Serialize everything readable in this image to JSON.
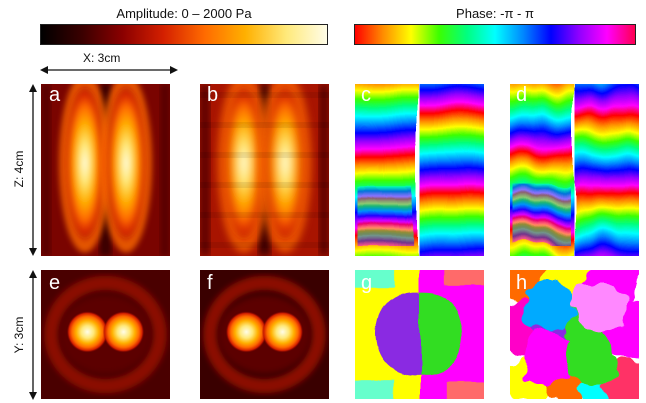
{
  "colorbars": {
    "amplitude": {
      "title": "Amplitude: 0 – 2000 Pa",
      "colors": [
        "#000000",
        "#3a0000",
        "#8b0000",
        "#d42000",
        "#ff6a00",
        "#ffb000",
        "#ffe97a",
        "#fffde8"
      ]
    },
    "phase": {
      "title": "Phase: -π - π",
      "colors": [
        "#ff0000",
        "#ff8c00",
        "#ffff00",
        "#3cff00",
        "#00ff80",
        "#00ffff",
        "#0088ff",
        "#0000ff",
        "#9000ff",
        "#ff00ff",
        "#ff0050"
      ]
    }
  },
  "axes": {
    "x": "X: 3cm",
    "z": "Z: 4cm",
    "y": "Y: 3cm"
  },
  "panels": [
    {
      "label": "a",
      "kind": "amp-xz",
      "variant": "simulated"
    },
    {
      "label": "b",
      "kind": "amp-xz",
      "variant": "measured"
    },
    {
      "label": "c",
      "kind": "phase-xz",
      "variant": "simulated"
    },
    {
      "label": "d",
      "kind": "phase-xz",
      "variant": "measured"
    },
    {
      "label": "e",
      "kind": "amp-xy",
      "variant": "simulated"
    },
    {
      "label": "f",
      "kind": "amp-xy",
      "variant": "measured"
    },
    {
      "label": "g",
      "kind": "phase-xy",
      "variant": "simulated"
    },
    {
      "label": "h",
      "kind": "phase-xy",
      "variant": "measured"
    }
  ]
}
